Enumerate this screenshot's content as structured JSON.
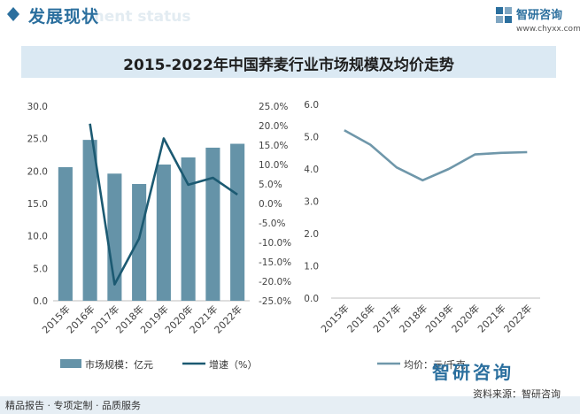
{
  "header": {
    "title": "发展现状",
    "ghost_text": "ment status"
  },
  "brand": {
    "name": "智研咨询",
    "url": "www.chyxx.com",
    "logo_text": "智研咨询"
  },
  "footer": {
    "left": "精品报告 · 专项定制 · 品质服务",
    "source": "资料来源：智研咨询"
  },
  "colors": {
    "bar": "#6593a8",
    "growth_line": "#1c5a72",
    "price_line": "#6f97aa",
    "accent": "#2b6f9e"
  },
  "chart_data": [
    {
      "type": "bar",
      "title": "2015-2022年中国荞麦行业市场规模及均价走势",
      "categories": [
        "2015年",
        "2016年",
        "2017年",
        "2018年",
        "2019年",
        "2020年",
        "2021年",
        "2022年"
      ],
      "series": [
        {
          "name": "市场规模：亿元",
          "type": "bar",
          "axis": "left",
          "values": [
            20.6,
            24.8,
            19.6,
            18.0,
            21.0,
            22.1,
            23.6,
            24.2
          ]
        },
        {
          "name": "增速（%）",
          "type": "line",
          "axis": "right",
          "values": [
            null,
            20.5,
            -20.8,
            -9.0,
            16.7,
            4.8,
            6.6,
            2.3
          ]
        }
      ],
      "y_left": {
        "min": 0,
        "max": 30,
        "ticks": [
          "0.0",
          "5.0",
          "10.0",
          "15.0",
          "20.0",
          "25.0",
          "30.0"
        ]
      },
      "y_right": {
        "min": -25,
        "max": 25,
        "ticks": [
          "-25.0%",
          "-20.0%",
          "-15.0%",
          "-10.0%",
          "-5.0%",
          "0.0%",
          "5.0%",
          "10.0%",
          "15.0%",
          "20.0%",
          "25.0%"
        ]
      },
      "legend": [
        "市场规模：亿元",
        "增速（%）"
      ],
      "legend_position": "bottom",
      "grid": false
    },
    {
      "type": "line",
      "categories": [
        "2015年",
        "2016年",
        "2017年",
        "2018年",
        "2019年",
        "2020年",
        "2021年",
        "2022年"
      ],
      "series": [
        {
          "name": "均价：元/千克",
          "values": [
            5.2,
            4.75,
            4.05,
            3.65,
            4.0,
            4.45,
            4.5,
            4.52
          ]
        }
      ],
      "y": {
        "min": 0,
        "max": 6,
        "ticks": [
          "0.0",
          "1.0",
          "2.0",
          "3.0",
          "4.0",
          "5.0",
          "6.0"
        ]
      },
      "legend": [
        "均价：元/千克"
      ],
      "legend_position": "bottom",
      "grid": false
    }
  ]
}
